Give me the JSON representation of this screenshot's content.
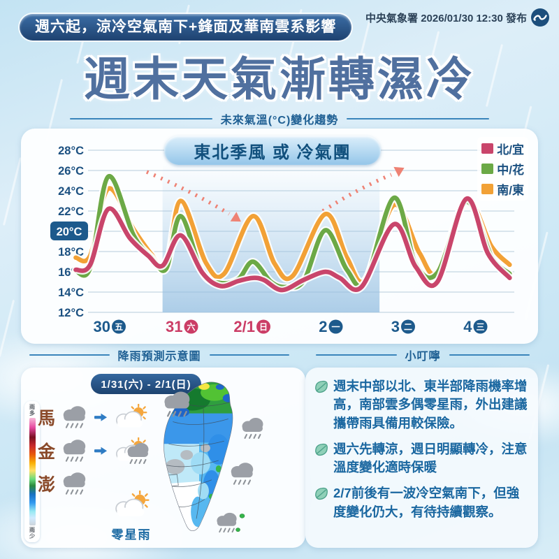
{
  "header": {
    "badge": "週六起，涼冷空氣南下+鋒面及華南雲系影響",
    "agency": "中央氣象署 2026/01/30 12:30 發布",
    "title": "週末天氣漸轉濕冷"
  },
  "chart_data": {
    "type": "line",
    "title": "未來氣溫(°C)變化趨勢",
    "annotation": "東北季風 或 冷氣團",
    "ylabel": "°C",
    "ylim": [
      12,
      28
    ],
    "yticks": [
      "28°C",
      "26°C",
      "24°C",
      "22°C",
      "20°C",
      "18°C",
      "16°C",
      "14°C",
      "12°C"
    ],
    "highlighted_ytick": "20°C",
    "grid": true,
    "legend_position": "top-right",
    "x_categories": [
      {
        "date": "30",
        "dow": "五",
        "weekend": false
      },
      {
        "date": "31",
        "dow": "六",
        "weekend": true
      },
      {
        "date": "2/1",
        "dow": "日",
        "weekend": true
      },
      {
        "date": "2",
        "dow": "一",
        "weekend": false
      },
      {
        "date": "3",
        "dow": "二",
        "weekend": false
      },
      {
        "date": "4",
        "dow": "三",
        "weekend": false
      }
    ],
    "cold_period_band_days": [
      0.75,
      3.75
    ],
    "trend_arrows": [
      {
        "direction": "down"
      },
      {
        "direction": "up"
      }
    ],
    "series": [
      {
        "name": "南/東",
        "color": "#f2a136",
        "points": [
          [
            -0.45,
            17.4
          ],
          [
            -0.25,
            17.6
          ],
          [
            0,
            24.2
          ],
          [
            0.35,
            20.2
          ],
          [
            0.6,
            17.7
          ],
          [
            0.8,
            16.4
          ],
          [
            1,
            23.0
          ],
          [
            1.35,
            16.9
          ],
          [
            1.6,
            15.8
          ],
          [
            2,
            21.5
          ],
          [
            2.3,
            16.8
          ],
          [
            2.55,
            15.6
          ],
          [
            3,
            21.7
          ],
          [
            3.3,
            17.4
          ],
          [
            3.55,
            15.2
          ],
          [
            3.95,
            22.6
          ],
          [
            4.3,
            17.9
          ],
          [
            4.55,
            16.0
          ],
          [
            4.95,
            23.1
          ],
          [
            5.3,
            18.5
          ],
          [
            5.55,
            16.7
          ]
        ]
      },
      {
        "name": "中/花",
        "color": "#6ca946",
        "points": [
          [
            -0.45,
            16.1
          ],
          [
            -0.25,
            16.4
          ],
          [
            0,
            25.4
          ],
          [
            0.35,
            19.6
          ],
          [
            0.6,
            17.4
          ],
          [
            0.8,
            16.3
          ],
          [
            1,
            21.5
          ],
          [
            1.3,
            15.9
          ],
          [
            1.55,
            14.9
          ],
          [
            1.8,
            15.3
          ],
          [
            2,
            17.0
          ],
          [
            2.25,
            15.0
          ],
          [
            2.45,
            14.5
          ],
          [
            2.7,
            15.1
          ],
          [
            3,
            20.1
          ],
          [
            3.3,
            16.2
          ],
          [
            3.55,
            15.0
          ],
          [
            3.95,
            23.3
          ],
          [
            4.25,
            16.8
          ],
          [
            4.55,
            15.9
          ],
          [
            4.95,
            22.9
          ],
          [
            5.3,
            17.5
          ],
          [
            5.55,
            15.8
          ]
        ]
      },
      {
        "name": "北/宜",
        "color": "#c9456b",
        "points": [
          [
            -0.45,
            16.2
          ],
          [
            -0.25,
            16.7
          ],
          [
            0,
            22.2
          ],
          [
            0.3,
            19.3
          ],
          [
            0.55,
            17.6
          ],
          [
            0.75,
            16.6
          ],
          [
            1,
            19.6
          ],
          [
            1.3,
            15.9
          ],
          [
            1.55,
            14.6
          ],
          [
            1.8,
            15.1
          ],
          [
            2,
            15.4
          ],
          [
            2.15,
            15.2
          ],
          [
            2.4,
            14.2
          ],
          [
            2.7,
            15.2
          ],
          [
            3,
            16.0
          ],
          [
            3.2,
            15.4
          ],
          [
            3.5,
            14.5
          ],
          [
            3.95,
            20.7
          ],
          [
            4.25,
            16.5
          ],
          [
            4.55,
            15.0
          ],
          [
            4.95,
            23.2
          ],
          [
            5.25,
            17.8
          ],
          [
            5.55,
            15.4
          ]
        ]
      }
    ],
    "legend": [
      {
        "name": "北/宜",
        "color": "#c9456b"
      },
      {
        "name": "中/花",
        "color": "#6ca946"
      },
      {
        "name": "南/東",
        "color": "#f2a136"
      }
    ]
  },
  "rain_section": {
    "title": "降雨預測示意圖",
    "period": "1/31(六) - 2/1(日)",
    "scale_top": "雨多",
    "scale_bottom": "雨少",
    "islands": [
      {
        "name": "馬",
        "forecast": "rain-improving-to-partly-sunny"
      },
      {
        "name": "金",
        "forecast": "rain-improving-to-partly-sunny"
      },
      {
        "name": "澎",
        "forecast": "rain"
      }
    ],
    "map_note": "零星雨"
  },
  "tips_section": {
    "title": "小叮嚀",
    "items": [
      "週末中部以北、東半部降雨機率增高，南部雲多偶零星雨，外出建議攜帶雨具備用較保險。",
      "週六先轉涼，週日明顯轉冷，注意溫度變化適時保暖",
      "2/7前後有一波冷空氣南下，但強度變化仍大，有待持續觀察。"
    ]
  },
  "colors": {
    "navy": "#1d5a8c",
    "weekend_red": "#cb3d66",
    "series_north": "#c9456b",
    "series_central": "#6ca946",
    "series_south": "#f2a136",
    "arrow_salmon": "#ee8274",
    "tip_text": "#1a67a0",
    "island_label_brown": "#8a4a2a"
  }
}
